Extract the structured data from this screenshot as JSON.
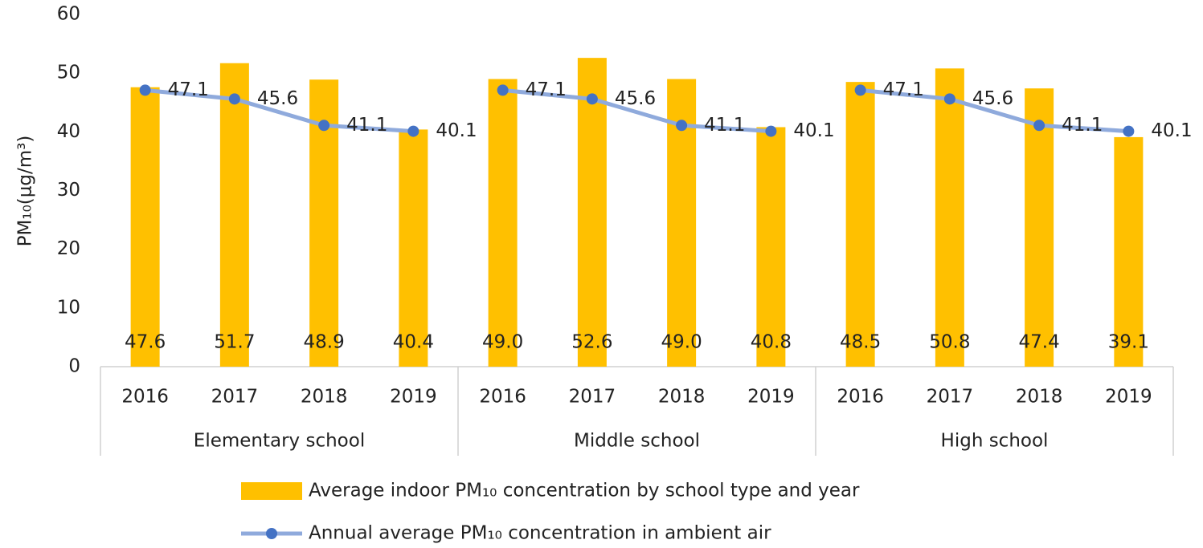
{
  "chart_data": {
    "type": "bar-line",
    "y_label": "PM₁₀(μg/m³)",
    "categories": [
      "2016",
      "2017",
      "2018",
      "2019",
      "2016",
      "2017",
      "2018",
      "2019",
      "2016",
      "2017",
      "2018",
      "2019"
    ],
    "groups": [
      "Elementary school",
      "Middle school",
      "High school"
    ],
    "ylim": [
      0,
      60
    ],
    "yticks": [
      0,
      10,
      20,
      30,
      40,
      50,
      60
    ],
    "grid": false,
    "legend": "bottom",
    "series": [
      {
        "name": "Average indoor PM₁₀ concentration by school type and year",
        "type": "bar",
        "color": "#FFC000",
        "values": [
          47.6,
          51.7,
          48.9,
          40.4,
          49.0,
          52.6,
          49.0,
          40.8,
          48.5,
          50.8,
          47.4,
          39.1
        ],
        "value_labels": [
          "47.6",
          "51.7",
          "48.9",
          "40.4",
          "49.0",
          "52.6",
          "49.0",
          "40.8",
          "48.5",
          "50.8",
          "47.4",
          "39.1"
        ]
      },
      {
        "name": "Annual average PM₁₀ concentration in ambient air",
        "type": "line",
        "color": "#8FAADC",
        "marker_color": "#4472C4",
        "values": [
          47.1,
          45.6,
          41.1,
          40.1,
          47.1,
          45.6,
          41.1,
          40.1,
          47.1,
          45.6,
          41.1,
          40.1
        ]
      }
    ]
  }
}
